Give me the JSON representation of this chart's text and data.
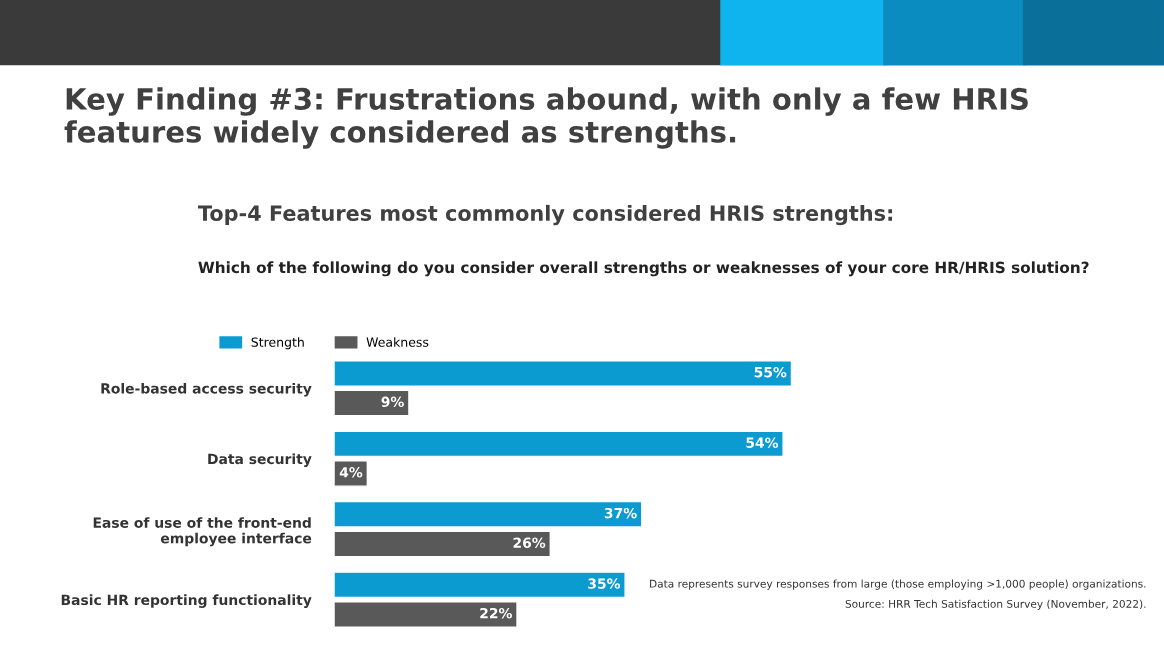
{
  "chart_data": {
    "type": "bar",
    "orientation": "horizontal",
    "title": "Key Finding #3: Frustrations abound, with only a few HRIS features widely considered as strengths.",
    "subtitle": "Top-4 Features most commonly considered HRIS strengths:",
    "categories": [
      "Role-based access security",
      "Data security",
      "Ease of use of the front-end\nemployee interface",
      "Basic HR reporting functionality"
    ],
    "series": [
      {
        "name": "Strength",
        "color": "#0c9bd0",
        "values": [
          55,
          54,
          37,
          35
        ],
        "value_labels": [
          "55%",
          "54%",
          "37%",
          "35%"
        ]
      },
      {
        "name": "Weakness",
        "color": "#595959",
        "values": [
          9,
          4,
          26,
          22
        ],
        "value_labels": [
          "9%",
          "4%",
          "26%",
          "22%"
        ]
      }
    ],
    "legend": "top left",
    "grid": false,
    "annotations": [
      "Which of the following do you consider overall strengths or weaknesses of your core HR/HRIS solution?",
      "Data represents survey responses from large (those employing >1,000 people) organizations.",
      "Source: HRR Tech Satisfaction Survey (November, 2022)."
    ]
  }
}
